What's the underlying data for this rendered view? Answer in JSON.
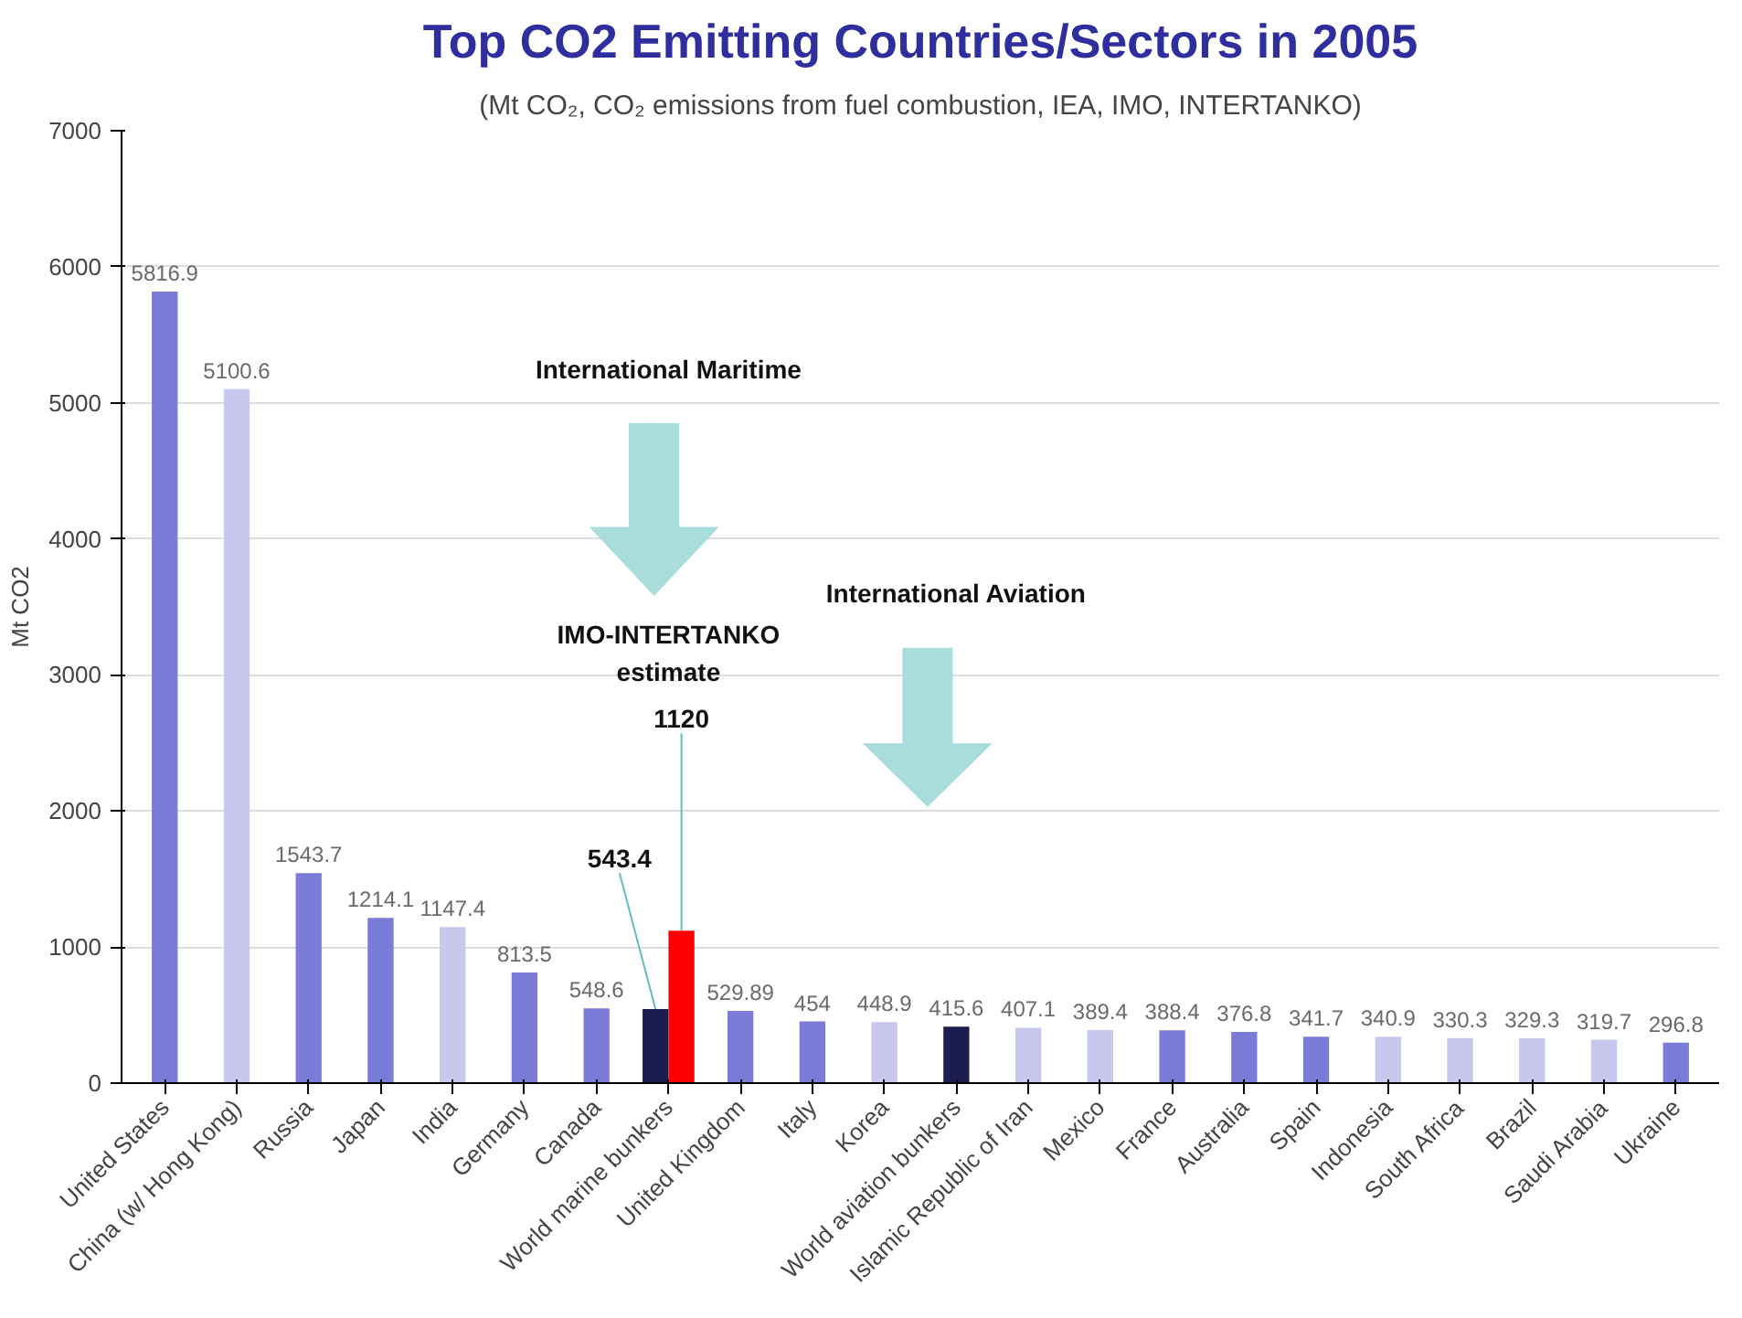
{
  "chart_data": {
    "type": "bar",
    "title": "Top CO2 Emitting Countries/Sectors in 2005",
    "subtitle": "(Mt CO₂, CO₂ emissions from fuel combustion, IEA, IMO, INTERTANKO)",
    "ylabel": "Mt CO2",
    "categories": [
      "United States",
      "China (w/ Hong Kong)",
      "Russia",
      "Japan",
      "India",
      "Germany",
      "Canada",
      "World marine bunkers",
      "United Kingdom",
      "Italy",
      "Korea",
      "World aviation bunkers",
      "Islamic Republic of Iran",
      "Mexico",
      "France",
      "Australia",
      "Spain",
      "Indonesia",
      "South Africa",
      "Brazil",
      "Saudi Arabia",
      "Ukraine"
    ],
    "series": [
      {
        "values": [
          5816.9,
          5100.6,
          1543.7,
          1214.1,
          1147.4,
          813.5,
          548.6,
          543.4,
          529.89,
          454,
          448.9,
          415.6,
          407.1,
          389.4,
          388.4,
          376.8,
          341.7,
          340.9,
          330.3,
          329.3,
          319.7,
          296.8
        ],
        "colors": [
          "#7b7bd8",
          "#c8c8ee",
          "#7b7bd8",
          "#7b7bd8",
          "#c8c8ee",
          "#7b7bd8",
          "#7b7bd8",
          "#1c1c4e",
          "#7b7bd8",
          "#7b7bd8",
          "#c8c8ee",
          "#1c1c4e",
          "#c8c8ee",
          "#c8c8ee",
          "#7b7bd8",
          "#7b7bd8",
          "#7b7bd8",
          "#c8c8ee",
          "#c8c8ee",
          "#c8c8ee",
          "#c8c8ee",
          "#7b7bd8"
        ],
        "value_labels": [
          "5816.9",
          "5100.6",
          "1543.7",
          "1214.1",
          "1147.4",
          "813.5",
          "548.6",
          "543.4",
          "529.89",
          "454",
          "448.9",
          "415.6",
          "407.1",
          "389.4",
          "388.4",
          "376.8",
          "341.7",
          "340.9",
          "330.3",
          "329.3",
          "319.7",
          "296.8"
        ]
      },
      {
        "color": "#ff0000",
        "values": [
          null,
          null,
          null,
          null,
          null,
          null,
          null,
          1120,
          null,
          null,
          null,
          null,
          null,
          null,
          null,
          null,
          null,
          null,
          null,
          null,
          null,
          null
        ],
        "value_labels": [
          null,
          null,
          null,
          null,
          null,
          null,
          null,
          "1120",
          null,
          null,
          null,
          null,
          null,
          null,
          null,
          null,
          null,
          null,
          null,
          null,
          null,
          null
        ]
      }
    ],
    "ylim": [
      0,
      7000
    ],
    "yticks": [
      0,
      1000,
      2000,
      3000,
      4000,
      5000,
      6000,
      7000
    ],
    "grid": "y",
    "annotations": [
      "International Maritime",
      "International Aviation",
      "IMO-INTERTANKO\nestimate"
    ]
  }
}
